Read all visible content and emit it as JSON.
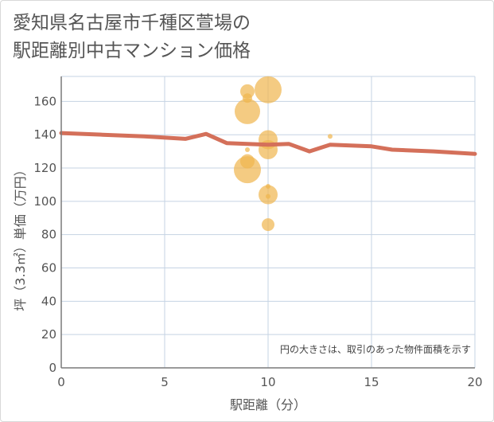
{
  "title": {
    "line1": "愛知県名古屋市千種区萱場の",
    "line2": "駅距離別中古マンション価格"
  },
  "chart_data": {
    "type": "scatter",
    "xlabel": "駅距離（分）",
    "ylabel": "坪（3.3㎡）単価（万円）",
    "xlim": [
      0,
      20
    ],
    "ylim": [
      0,
      175
    ],
    "x_ticks": [
      0,
      5,
      10,
      15,
      20
    ],
    "y_ticks": [
      0,
      20,
      40,
      60,
      80,
      100,
      120,
      140,
      160
    ],
    "grid": true,
    "note": "円の大きさは、取引のあった物件面積を示す",
    "colors": {
      "bubble": "#f0b54d",
      "line": "#d4705a",
      "grid": "#c5d3e3",
      "axis": "#7a7a7a"
    },
    "bubbles": [
      {
        "x": 9,
        "y": 166,
        "size": 9
      },
      {
        "x": 9,
        "y": 162,
        "size": 6
      },
      {
        "x": 9,
        "y": 154,
        "size": 16
      },
      {
        "x": 9,
        "y": 131,
        "size": 3
      },
      {
        "x": 9,
        "y": 124,
        "size": 9
      },
      {
        "x": 9,
        "y": 119,
        "size": 17
      },
      {
        "x": 10,
        "y": 167,
        "size": 17
      },
      {
        "x": 10,
        "y": 137,
        "size": 12
      },
      {
        "x": 10,
        "y": 131,
        "size": 12
      },
      {
        "x": 10,
        "y": 109,
        "size": 3
      },
      {
        "x": 10,
        "y": 104,
        "size": 12
      },
      {
        "x": 10,
        "y": 103,
        "size": 3
      },
      {
        "x": 10,
        "y": 86,
        "size": 8
      },
      {
        "x": 13,
        "y": 139,
        "size": 3
      }
    ],
    "series": [
      {
        "x": [
          0,
          2,
          4,
          6,
          7,
          8,
          10,
          11,
          12,
          13,
          15,
          16,
          18,
          20
        ],
        "y": [
          141,
          140,
          139,
          137.5,
          140.5,
          135,
          134,
          134.5,
          130,
          134,
          133,
          131,
          130,
          128.5
        ]
      }
    ]
  }
}
